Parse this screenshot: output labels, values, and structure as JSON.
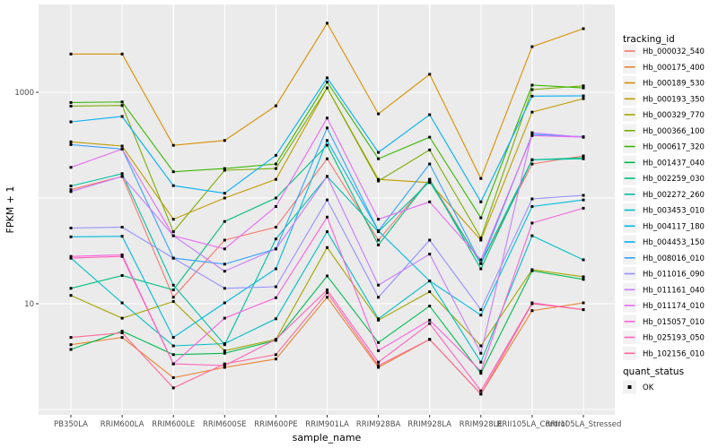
{
  "chart_data": {
    "type": "line",
    "title": "",
    "xlabel": "sample_name",
    "ylabel": "FPKM + 1",
    "y_scale": "log10",
    "ylim": [
      0.9,
      6700
    ],
    "yticks": [
      {
        "value": 1000,
        "label": "1000"
      },
      {
        "value": 10,
        "label": "10"
      }
    ],
    "gridlines_at": [
      1,
      10,
      100,
      1000
    ],
    "grid": true,
    "panel_bg": "#EBEBEB",
    "grid_color": "#FFFFFF",
    "axis_text_color": "#4D4D4D",
    "marker": "black-square",
    "marker_color": "#000000",
    "legend_position": "right",
    "legend_title": "tracking_id",
    "quant_legend": {
      "title": "quant_status",
      "items": [
        {
          "label": "OK",
          "key": "black-square"
        }
      ]
    },
    "categories": [
      "PB350LA",
      "RRIM600LA",
      "RRIM600LE",
      "RRIM600SE",
      "RRIM600PE",
      "RRIM901LA",
      "RRIM928BA",
      "RRIM928LA",
      "RRIM928LE",
      "RRII105LA_Control",
      "RRII105LA_Stressed"
    ],
    "series": [
      {
        "name": "Hb_000032_540",
        "color": "#F8766D",
        "values": [
          120,
          160,
          11.5,
          40,
          53,
          235,
          40,
          150,
          24,
          210,
          250
        ]
      },
      {
        "name": "Hb_000175_400",
        "color": "#EA8331",
        "values": [
          4.1,
          4.8,
          2.0,
          2.5,
          3.0,
          11.5,
          2.5,
          4.6,
          1.4,
          8.6,
          10.2
        ]
      },
      {
        "name": "Hb_000189_530",
        "color": "#D89000",
        "values": [
          2300,
          2300,
          315,
          350,
          745,
          4500,
          625,
          1480,
          153,
          2700,
          4000
        ]
      },
      {
        "name": "Hb_000193_350",
        "color": "#C09B00",
        "values": [
          340,
          310,
          63,
          100,
          150,
          1100,
          150,
          140,
          40,
          650,
          870
        ]
      },
      {
        "name": "Hb_000329_770",
        "color": "#A3A500",
        "values": [
          12,
          7.3,
          10.5,
          3.6,
          4.6,
          34,
          7.0,
          13,
          4.0,
          21,
          18
        ]
      },
      {
        "name": "Hb_000366_100",
        "color": "#7CAE00",
        "values": [
          740,
          750,
          48,
          183,
          190,
          1100,
          145,
          285,
          42,
          1060,
          1150
        ]
      },
      {
        "name": "Hb_000617_320",
        "color": "#39B600",
        "values": [
          800,
          810,
          177,
          190,
          210,
          1250,
          235,
          376,
          65,
          1170,
          1100
        ]
      },
      {
        "name": "Hb_001437_040",
        "color": "#00BB4E",
        "values": [
          3.7,
          5.5,
          3.3,
          3.4,
          4.5,
          18.3,
          4.3,
          9.5,
          2.2,
          20.5,
          17
        ]
      },
      {
        "name": "Hb_002259_030",
        "color": "#00BF7D",
        "values": [
          14,
          18.5,
          13.5,
          60,
          100,
          316,
          36,
          150,
          21.4,
          230,
          240
        ]
      },
      {
        "name": "Hb_002272_260",
        "color": "#00C1A3",
        "values": [
          130,
          170,
          15,
          4.1,
          41,
          160,
          48,
          143,
          24,
          230,
          235
        ]
      },
      {
        "name": "Hb_003453_010",
        "color": "#00BFC4",
        "values": [
          27,
          10.2,
          4.0,
          4.2,
          7.2,
          48,
          7.2,
          16.4,
          2.8,
          44,
          26
        ]
      },
      {
        "name": "Hb_004117_180",
        "color": "#00BAE0",
        "values": [
          43,
          43.5,
          4.8,
          10.2,
          21.4,
          350,
          49,
          16.4,
          7.8,
          83,
          96
        ]
      },
      {
        "name": "Hb_004453_150",
        "color": "#00B0F6",
        "values": [
          525,
          590,
          131,
          111,
          253,
          1370,
          270,
          614,
          92,
          920,
          925
        ]
      },
      {
        "name": "Hb_008016_010",
        "color": "#35A2FF",
        "values": [
          320,
          290,
          27,
          23.7,
          33,
          460,
          49,
          210,
          24,
          400,
          380
        ]
      },
      {
        "name": "Hb_011016_090",
        "color": "#9590FF",
        "values": [
          52,
          53,
          27,
          14,
          14.5,
          96,
          11.5,
          40,
          8.8,
          98,
          106
        ]
      },
      {
        "name": "Hb_011161_040",
        "color": "#C77CFF",
        "values": [
          115,
          160,
          44,
          20.3,
          33,
          160,
          15,
          29.5,
          3.4,
          415,
          376
        ]
      },
      {
        "name": "Hb_011174_010",
        "color": "#E76BF3",
        "values": [
          195,
          290,
          44,
          33,
          83,
          570,
          63,
          92,
          26,
          390,
          376
        ]
      },
      {
        "name": "Hb_015057_010",
        "color": "#FA62DB",
        "values": [
          28,
          29,
          2.7,
          7.3,
          11.4,
          66,
          3.6,
          7.0,
          2.3,
          58,
          80
        ]
      },
      {
        "name": "Hb_025193_050",
        "color": "#FF62BC",
        "values": [
          27,
          28,
          2.7,
          2.6,
          4.6,
          13.5,
          2.8,
          6.5,
          1.5,
          10.2,
          8.8
        ]
      },
      {
        "name": "Hb_102156_010",
        "color": "#FF6A98",
        "values": [
          4.8,
          5.3,
          1.6,
          2.7,
          3.3,
          12.7,
          2.6,
          4.6,
          1.4,
          10.0,
          8.8
        ]
      }
    ]
  }
}
